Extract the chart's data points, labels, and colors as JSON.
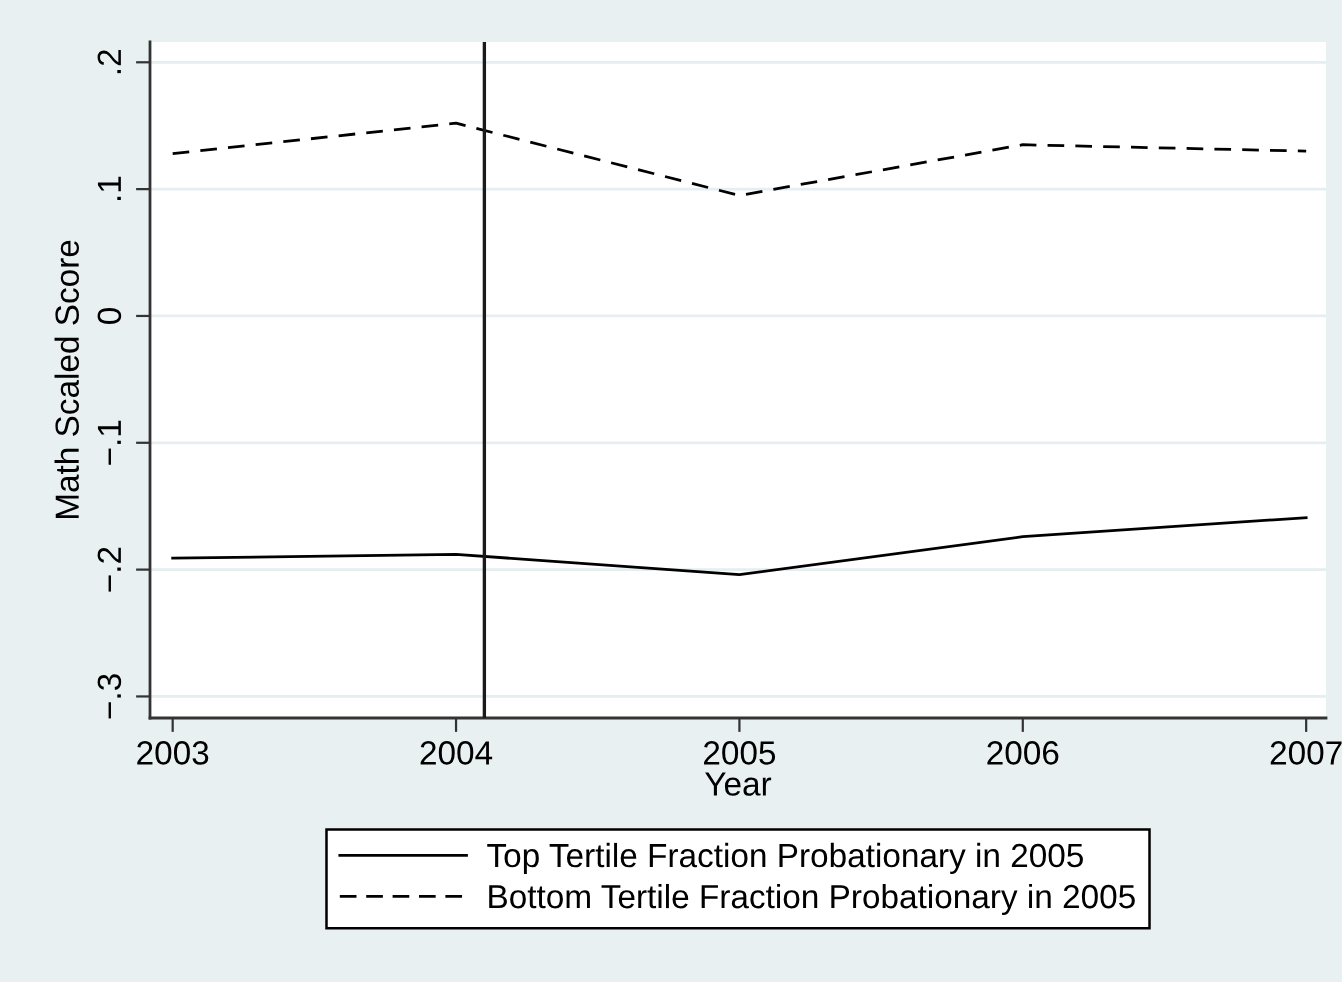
{
  "chart_data": {
    "type": "line",
    "xlabel": "Year",
    "ylabel": "Math Scaled Score",
    "x": [
      2003,
      2004,
      2005,
      2006,
      2007
    ],
    "series": [
      {
        "name": "Top Tertile Fraction Probationary in 2005",
        "color": "#000000",
        "line_style": "solid",
        "values": [
          -0.191,
          -0.188,
          -0.204,
          -0.174,
          -0.159
        ]
      },
      {
        "name": "Bottom Tertile Fraction Probationary in 2005",
        "color": "#000000",
        "line_style": "dashed",
        "values": [
          0.128,
          0.152,
          0.095,
          0.135,
          0.13
        ]
      }
    ],
    "xlim": [
      2002.92,
      2007.07
    ],
    "ylim": [
      -0.317,
      0.216
    ],
    "xticks": [
      2003,
      2004,
      2005,
      2006,
      2007
    ],
    "yticks": [
      {
        "value": -0.3,
        "label": "−.3"
      },
      {
        "value": -0.2,
        "label": "−.2"
      },
      {
        "value": -0.1,
        "label": "−.1"
      },
      0,
      {
        "value": 0.1,
        "label": ".1"
      },
      {
        "value": 0.2,
        "label": ".2"
      }
    ],
    "ref_lines": [
      {
        "axis": "x",
        "value": 2004.1,
        "color": "#1a1a1a"
      }
    ],
    "grid": "y",
    "legend": "bottom"
  }
}
